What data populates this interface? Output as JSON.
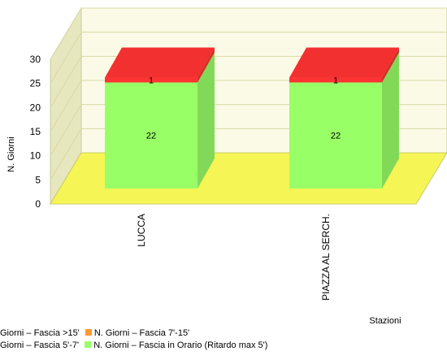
{
  "chart_data": {
    "type": "bar",
    "stacked": true,
    "three_d": true,
    "categories": [
      "LUCCA",
      "PIAZZA AL SERCH."
    ],
    "series": [
      {
        "name": "N. Giorni – Fascia in Orario (Ritardo max 5')",
        "values": [
          22,
          22
        ],
        "color": "#99ff66"
      },
      {
        "name": "N. Giorni – Fascia 5'-7'",
        "values": [
          0,
          0
        ],
        "color": "#009900"
      },
      {
        "name": "N. Giorni – Fascia 7'-15'",
        "values": [
          0,
          0
        ],
        "color": "#ff9933"
      },
      {
        "name": "N. Giorni – Fascia >15'",
        "values": [
          1,
          1
        ],
        "color": "#ff3333"
      }
    ],
    "data_labels": [
      [
        22,
        1
      ],
      [
        22,
        1
      ]
    ],
    "xlabel": "Stazioni",
    "ylabel": "N. Giorni",
    "ylim": [
      0,
      30
    ],
    "yticks": [
      "0",
      "5",
      "10",
      "15",
      "20",
      "25",
      "30"
    ],
    "grid": true,
    "legend_position": "bottom-left"
  },
  "legend_rows": [
    {
      "left_text": "Giorni – Fascia >15'",
      "color": "#ff9933",
      "right_text": "N. Giorni – Fascia 7'-15'"
    },
    {
      "left_text": "Giorni – Fascia 5'-7'",
      "color": "#99ff66",
      "right_text": "N. Giorni – Fascia in Orario (Ritardo max 5')"
    }
  ],
  "colors": {
    "wall": "#fafae6",
    "side_wall": "#e6e6bf",
    "floor": "#f5f556",
    "grid": "#d9d9a6"
  }
}
